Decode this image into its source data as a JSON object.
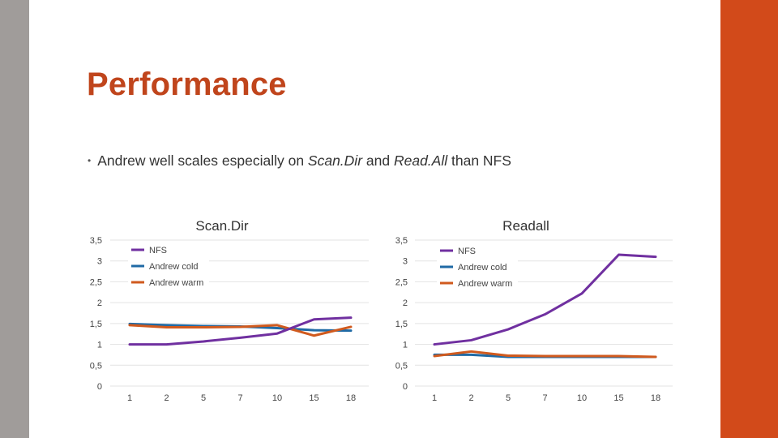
{
  "slide": {
    "title": "Performance",
    "bullet": {
      "text_1": "Andrew well scales especially on ",
      "em_1": "Scan.Dir",
      "text_2": " and ",
      "em_2": "Read.All",
      "text_3": " than NFS"
    }
  },
  "colors": {
    "title": "#c0451c",
    "accent_bar": "#d24a1a",
    "side_bar": "#a09c9a"
  },
  "chart_data": [
    {
      "type": "line",
      "title": "Scan.Dir",
      "categories": [
        "1",
        "2",
        "5",
        "7",
        "10",
        "15",
        "18"
      ],
      "ylim": [
        0,
        3.5
      ],
      "yticks": [
        "0",
        "0,5",
        "1",
        "1,5",
        "2",
        "2,5",
        "3",
        "3,5"
      ],
      "grid": "horizontal",
      "legend_position": "top-left",
      "series": [
        {
          "name": "NFS",
          "color": "#7030a0",
          "values": [
            1.0,
            1.0,
            1.07,
            1.16,
            1.26,
            1.6,
            1.64
          ]
        },
        {
          "name": "Andrew cold",
          "color": "#1f6aa5",
          "values": [
            1.49,
            1.46,
            1.44,
            1.43,
            1.39,
            1.34,
            1.33
          ]
        },
        {
          "name": "Andrew warm",
          "color": "#d05a1e",
          "values": [
            1.46,
            1.41,
            1.41,
            1.42,
            1.46,
            1.21,
            1.42
          ]
        }
      ]
    },
    {
      "type": "line",
      "title": "Readall",
      "categories": [
        "1",
        "2",
        "5",
        "7",
        "10",
        "15",
        "18"
      ],
      "ylim": [
        0,
        3.5
      ],
      "yticks": [
        "0",
        "0,5",
        "1",
        "1,5",
        "2",
        "2,5",
        "3",
        "3,5"
      ],
      "grid": "horizontal",
      "legend_position": "top-right",
      "series": [
        {
          "name": "NFS",
          "color": "#7030a0",
          "values": [
            1.0,
            1.1,
            1.36,
            1.72,
            2.22,
            3.15,
            3.1
          ]
        },
        {
          "name": "Andrew cold",
          "color": "#1f6aa5",
          "values": [
            0.75,
            0.75,
            0.7,
            0.7,
            0.7,
            0.7,
            0.7
          ]
        },
        {
          "name": "Andrew warm",
          "color": "#d05a1e",
          "values": [
            0.72,
            0.83,
            0.73,
            0.72,
            0.72,
            0.72,
            0.7
          ]
        }
      ]
    }
  ]
}
